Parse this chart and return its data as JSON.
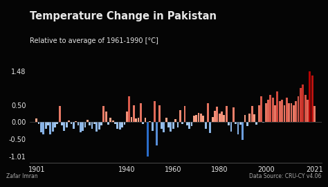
{
  "title": "Temperature Change in Pakistan",
  "subtitle": "Relative to average of 1961-1990 [°C]",
  "xlabel_left": "Zafar Imran",
  "xlabel_right": "Data Source: CRU-CY v4.06",
  "background_color": "#050505",
  "text_color": "#e8e8e8",
  "ylim": [
    -1.18,
    1.65
  ],
  "yticks": [
    -1.01,
    -0.5,
    0.0,
    0.5,
    1.48
  ],
  "xticks": [
    1901,
    1940,
    1960,
    1980,
    2000,
    2021
  ],
  "years": [
    1901,
    1902,
    1903,
    1904,
    1905,
    1906,
    1907,
    1908,
    1909,
    1910,
    1911,
    1912,
    1913,
    1914,
    1915,
    1916,
    1917,
    1918,
    1919,
    1920,
    1921,
    1922,
    1923,
    1924,
    1925,
    1926,
    1927,
    1928,
    1929,
    1930,
    1931,
    1932,
    1933,
    1934,
    1935,
    1936,
    1937,
    1938,
    1939,
    1940,
    1941,
    1942,
    1943,
    1944,
    1945,
    1946,
    1947,
    1948,
    1949,
    1950,
    1951,
    1952,
    1953,
    1954,
    1955,
    1956,
    1957,
    1958,
    1959,
    1960,
    1961,
    1962,
    1963,
    1964,
    1965,
    1966,
    1967,
    1968,
    1969,
    1970,
    1971,
    1972,
    1973,
    1974,
    1975,
    1976,
    1977,
    1978,
    1979,
    1980,
    1981,
    1982,
    1983,
    1984,
    1985,
    1986,
    1987,
    1988,
    1989,
    1990,
    1991,
    1992,
    1993,
    1994,
    1995,
    1996,
    1997,
    1998,
    1999,
    2000,
    2001,
    2002,
    2003,
    2004,
    2005,
    2006,
    2007,
    2008,
    2009,
    2010,
    2011,
    2012,
    2013,
    2014,
    2015,
    2016,
    2017,
    2018,
    2019,
    2020,
    2021
  ],
  "values": [
    0.1,
    -0.05,
    -0.3,
    -0.35,
    -0.2,
    -0.1,
    -0.35,
    -0.28,
    -0.15,
    -0.05,
    0.48,
    -0.1,
    -0.25,
    -0.15,
    0.05,
    -0.05,
    -0.2,
    0.02,
    -0.1,
    -0.3,
    -0.25,
    -0.15,
    0.06,
    -0.1,
    -0.2,
    -0.05,
    -0.28,
    -0.22,
    -0.1,
    0.48,
    0.3,
    -0.08,
    0.12,
    0.05,
    -0.05,
    -0.2,
    -0.22,
    -0.15,
    -0.08,
    0.3,
    0.75,
    0.15,
    0.5,
    0.1,
    0.12,
    0.55,
    -0.05,
    0.12,
    -1.01,
    0.02,
    -0.25,
    0.62,
    -0.68,
    0.5,
    -0.2,
    -0.3,
    0.12,
    -0.15,
    -0.28,
    -0.2,
    0.08,
    -0.15,
    0.35,
    -0.05,
    0.48,
    -0.1,
    -0.2,
    -0.12,
    0.18,
    0.2,
    0.26,
    0.25,
    0.18,
    -0.2,
    0.55,
    -0.32,
    0.15,
    0.32,
    0.45,
    0.25,
    0.3,
    0.2,
    0.48,
    -0.1,
    -0.28,
    0.44,
    -0.05,
    -0.35,
    -0.08,
    -0.52,
    0.2,
    -0.12,
    0.25,
    0.48,
    0.22,
    -0.08,
    0.5,
    0.75,
    -0.02,
    0.55,
    0.65,
    0.8,
    0.72,
    0.5,
    0.9,
    0.62,
    0.65,
    0.5,
    0.72,
    0.55,
    0.55,
    0.5,
    0.62,
    0.75,
    1.0,
    1.1,
    0.8,
    0.65,
    1.48,
    1.35,
    0.48
  ]
}
